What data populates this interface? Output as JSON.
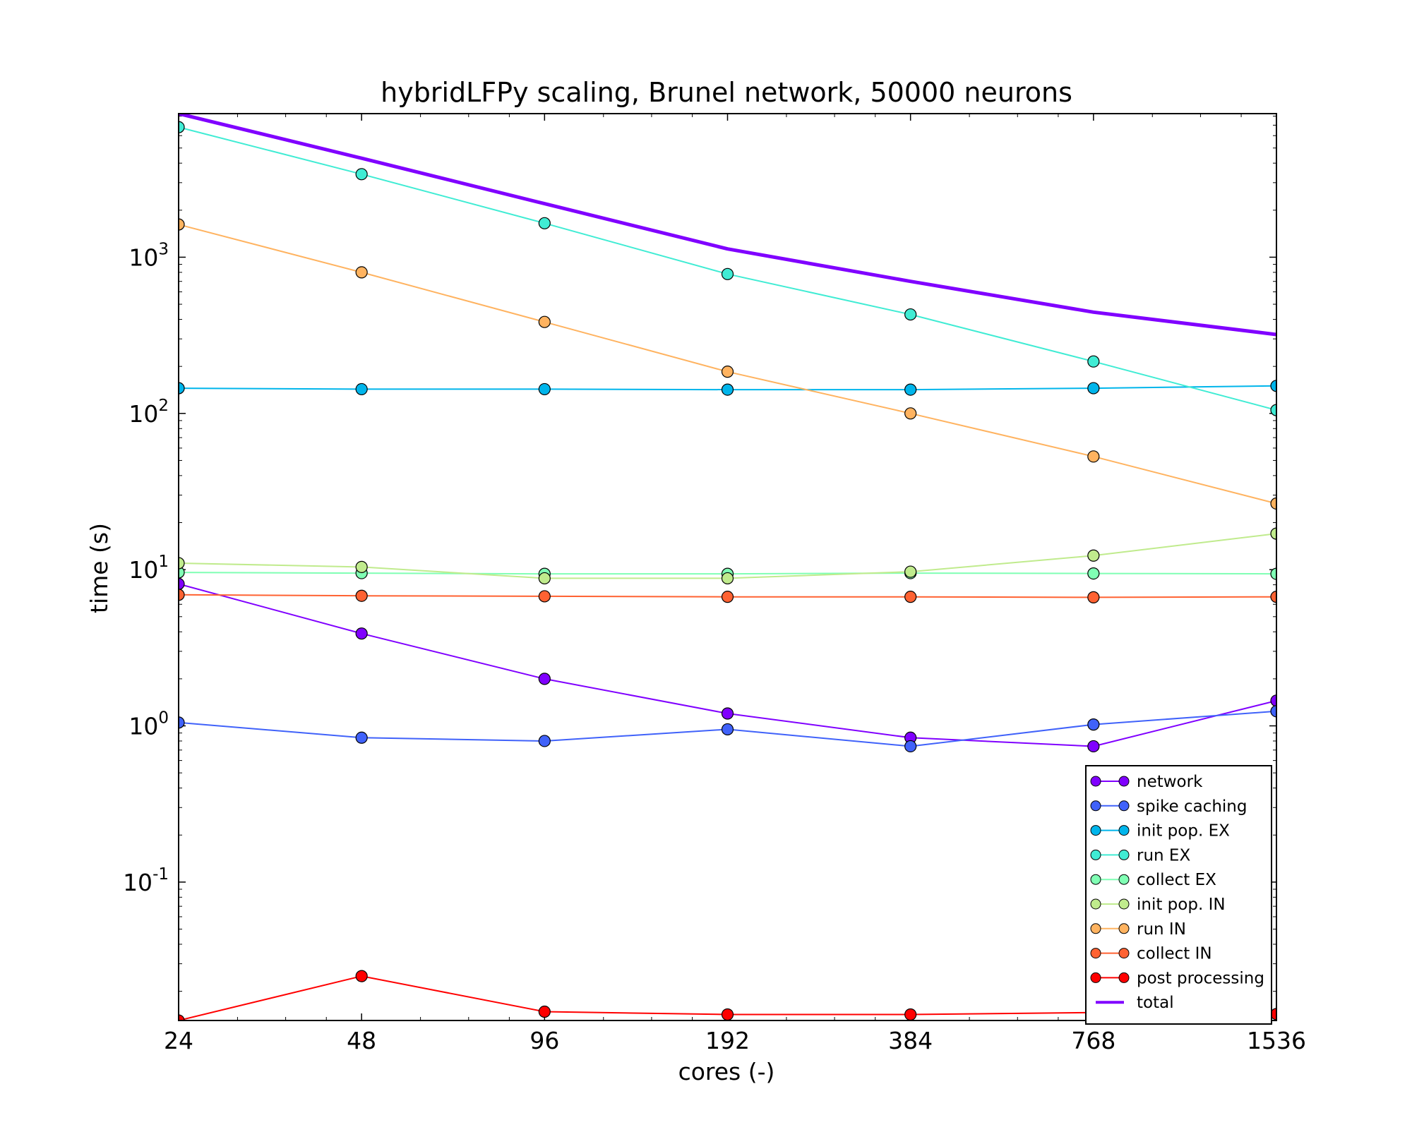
{
  "chart_data": {
    "type": "line",
    "title": "hybridLFPy scaling, Brunel network, 50000 neurons",
    "xlabel": "cores (-)",
    "ylabel": "time (s)",
    "xscale": "log2",
    "yscale": "log10",
    "xlim": [
      24,
      1536
    ],
    "ylim": [
      0.013,
      8300
    ],
    "x": [
      24,
      48,
      96,
      192,
      384,
      768,
      1536
    ],
    "x_tick_labels": [
      "24",
      "48",
      "96",
      "192",
      "384",
      "768",
      "1536"
    ],
    "y_ticks": [
      {
        "base": "10",
        "exp": "-1",
        "value": 0.1
      },
      {
        "base": "10",
        "exp": "0",
        "value": 1
      },
      {
        "base": "10",
        "exp": "1",
        "value": 10
      },
      {
        "base": "10",
        "exp": "2",
        "value": 100
      },
      {
        "base": "10",
        "exp": "3",
        "value": 1000
      }
    ],
    "grid": false,
    "legend_position": "lower right",
    "series": [
      {
        "name": "network",
        "color": "#8000ff",
        "marker": true,
        "width": 2,
        "values": [
          8.1,
          3.9,
          2.0,
          1.2,
          0.84,
          0.74,
          1.45
        ]
      },
      {
        "name": "spike caching",
        "color": "#4062fa",
        "marker": true,
        "width": 2,
        "values": [
          1.05,
          0.84,
          0.8,
          0.95,
          0.74,
          1.02,
          1.24
        ]
      },
      {
        "name": "init pop. EX",
        "color": "#00b5eb",
        "marker": true,
        "width": 2,
        "values": [
          145,
          143,
          143,
          142,
          142,
          145,
          150
        ]
      },
      {
        "name": "run EX",
        "color": "#40ecd4",
        "marker": true,
        "width": 2,
        "values": [
          6800,
          3400,
          1650,
          780,
          430,
          215,
          105
        ]
      },
      {
        "name": "collect EX",
        "color": "#80ffb4",
        "marker": true,
        "width": 2,
        "values": [
          9.6,
          9.5,
          9.4,
          9.4,
          9.5,
          9.45,
          9.4
        ]
      },
      {
        "name": "init pop. IN",
        "color": "#c0eb8d",
        "marker": true,
        "width": 2,
        "values": [
          11.0,
          10.4,
          8.8,
          8.8,
          9.7,
          12.3,
          17.0
        ]
      },
      {
        "name": "run IN",
        "color": "#ffb360",
        "marker": true,
        "width": 2,
        "values": [
          1620,
          800,
          385,
          185,
          100,
          53,
          26.5
        ]
      },
      {
        "name": "collect IN",
        "color": "#ff6232",
        "marker": true,
        "width": 2,
        "values": [
          6.9,
          6.8,
          6.75,
          6.7,
          6.7,
          6.65,
          6.7
        ]
      },
      {
        "name": "post processing",
        "color": "#ff0000",
        "marker": true,
        "width": 2,
        "values": [
          0.013,
          0.025,
          0.0148,
          0.0142,
          0.0142,
          0.0146,
          0.0143
        ]
      },
      {
        "name": "total",
        "color": "#8000ff",
        "marker": false,
        "width": 5,
        "values": [
          8300,
          4300,
          2200,
          1130,
          700,
          445,
          320
        ]
      }
    ]
  }
}
